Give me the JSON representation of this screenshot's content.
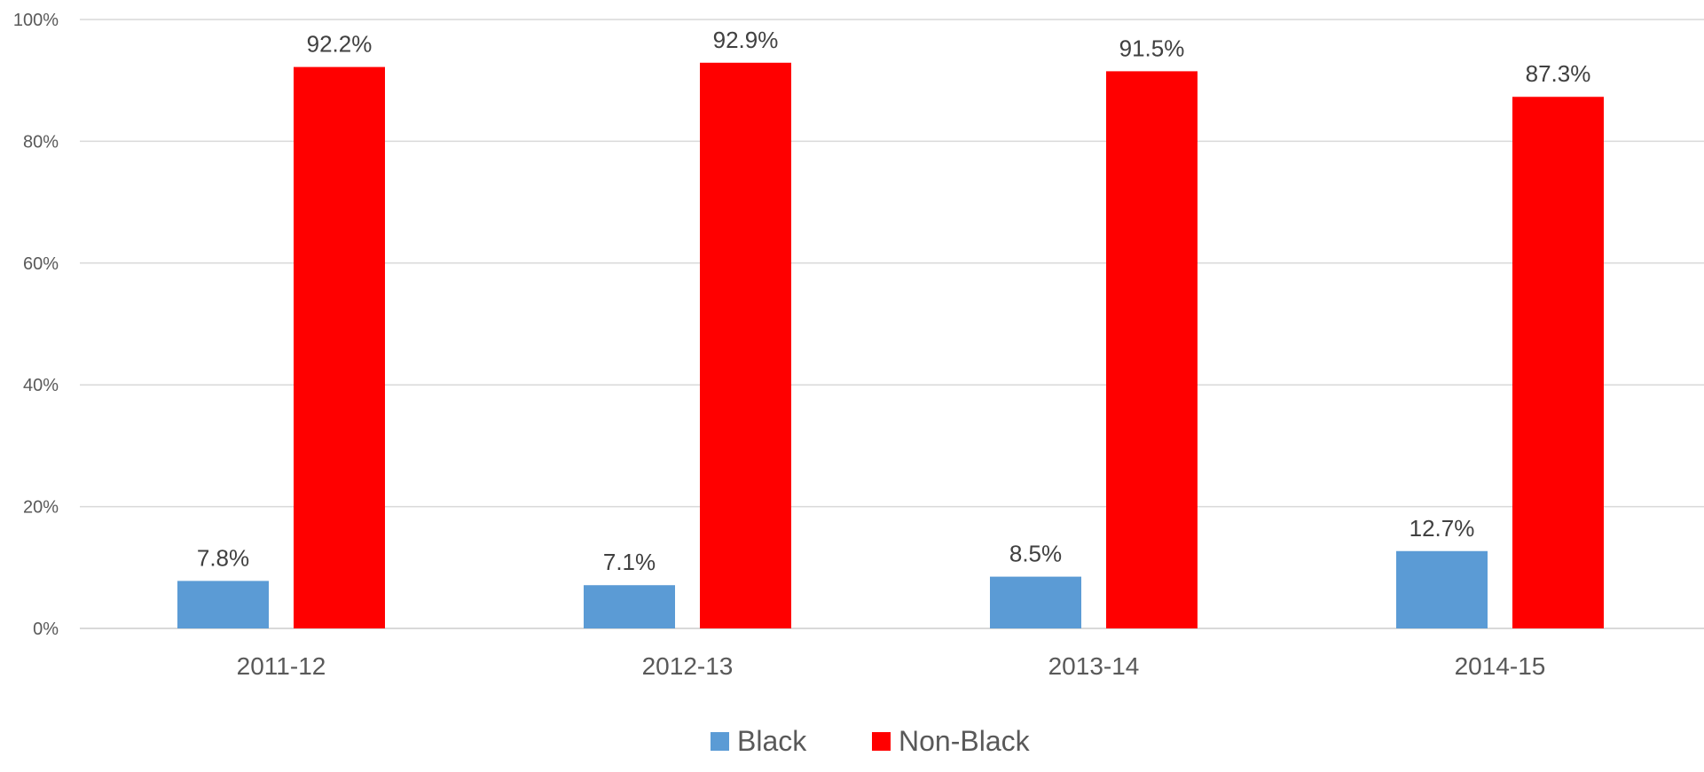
{
  "chart_data": {
    "type": "bar",
    "title": "",
    "xlabel": "",
    "ylabel": "",
    "categories": [
      "2011-12",
      "2012-13",
      "2013-14",
      "2014-15"
    ],
    "series": [
      {
        "name": "Black",
        "values": [
          7.8,
          7.1,
          8.5,
          12.7
        ],
        "labels": [
          "7.8%",
          "7.1%",
          "8.5%",
          "12.7%"
        ],
        "color": "#5b9bd5"
      },
      {
        "name": "Non-Black",
        "values": [
          92.2,
          92.9,
          91.5,
          87.3
        ],
        "labels": [
          "92.2%",
          "92.9%",
          "91.5%",
          "87.3%"
        ],
        "color": "#ff0000"
      }
    ],
    "ylim": [
      0,
      100
    ],
    "yticks": [
      0,
      20,
      40,
      60,
      80,
      100
    ],
    "ytick_labels": [
      "0%",
      "20%",
      "40%",
      "60%",
      "80%",
      "100%"
    ],
    "grid": true,
    "legend": "bottom-center"
  }
}
